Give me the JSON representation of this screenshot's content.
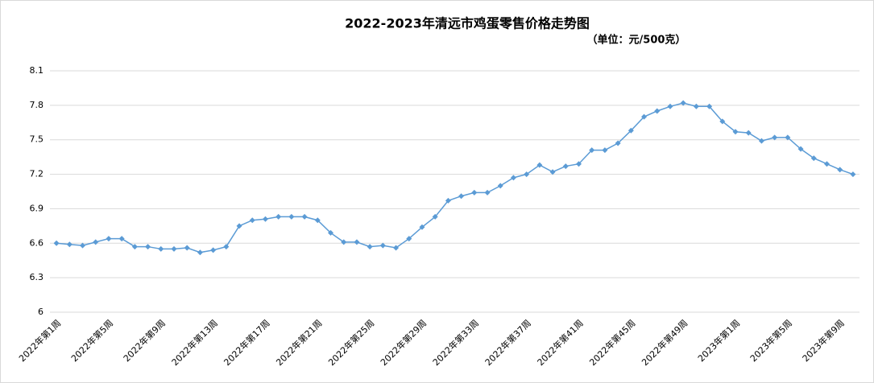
{
  "chart_data": {
    "type": "line",
    "title": "2022-2023年清远市鸡蛋零售价格走势图",
    "subtitle": "（单位：元/500克）",
    "categories": [
      "2022年第1周",
      null,
      null,
      null,
      "2022年第5周",
      null,
      null,
      null,
      "2022年第9周",
      null,
      null,
      null,
      "2022年第13周",
      null,
      null,
      null,
      "2022年第17周",
      null,
      null,
      null,
      "2022年第21周",
      null,
      null,
      null,
      "2022年第25周",
      null,
      null,
      null,
      "2022年第29周",
      null,
      null,
      null,
      "2022年第33周",
      null,
      null,
      null,
      "2022年第37周",
      null,
      null,
      null,
      "2022年第41周",
      null,
      null,
      null,
      "2022年第45周",
      null,
      null,
      null,
      "2022年第49周",
      null,
      null,
      null,
      "2023年第1周",
      null,
      null,
      null,
      "2023年第5周",
      null,
      null,
      null,
      "2023年第9周",
      null
    ],
    "values": [
      6.6,
      6.59,
      6.58,
      6.61,
      6.64,
      6.64,
      6.57,
      6.57,
      6.55,
      6.55,
      6.56,
      6.52,
      6.54,
      6.57,
      6.75,
      6.8,
      6.81,
      6.83,
      6.83,
      6.83,
      6.8,
      6.69,
      6.61,
      6.61,
      6.57,
      6.58,
      6.56,
      6.64,
      6.74,
      6.83,
      6.97,
      7.01,
      7.04,
      7.04,
      7.1,
      7.17,
      7.2,
      7.28,
      7.22,
      7.27,
      7.29,
      7.41,
      7.41,
      7.47,
      7.58,
      7.7,
      7.75,
      7.79,
      7.82,
      7.79,
      7.79,
      7.66,
      7.57,
      7.56,
      7.49,
      7.52,
      7.52,
      7.42,
      7.34,
      7.29,
      7.24,
      7.2
    ],
    "color": "#5b9bd5",
    "ylim": [
      6,
      8.1
    ],
    "yticks": [
      6,
      6.3,
      6.6,
      6.9,
      7.2,
      7.5,
      7.8,
      8.1
    ],
    "grid": true
  }
}
